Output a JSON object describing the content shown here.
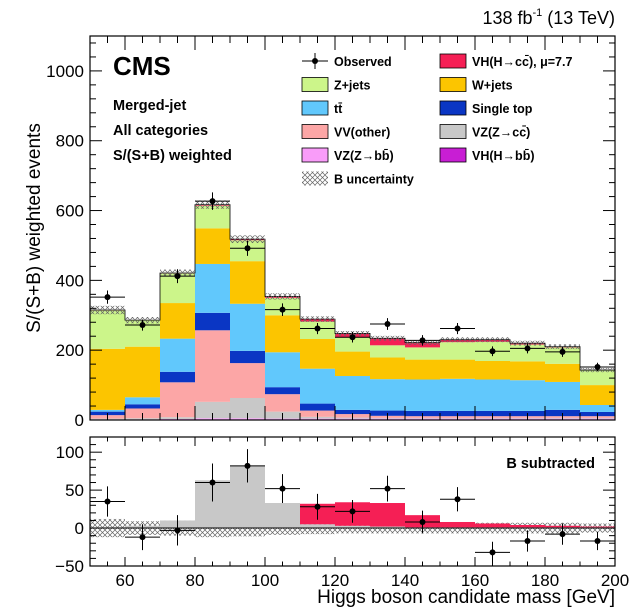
{
  "header": {
    "lumi_value": "138 fb",
    "lumi_exp": "-1",
    "lumi_energy": " (13 TeV)"
  },
  "labels": {
    "experiment": "CMS",
    "note1": "Merged-jet",
    "note2": "All categories",
    "note3": "S/(S+B) weighted",
    "lower_note": "B subtracted"
  },
  "colors": {
    "zjets": "#ccf58a",
    "wjets": "#fcc500",
    "ttbar": "#61c8fc",
    "singletop": "#0a36c4",
    "vvother": "#fca6a6",
    "vzcc": "#c8c8c8",
    "vzbb": "#f99cf9",
    "vhbb": "#c81ed4",
    "vhcc": "#f51f55"
  },
  "legend": [
    {
      "key": "observed",
      "label": "Observed",
      "kind": "marker"
    },
    {
      "key": "vhcc",
      "label": "VH(H→cc̄), μ=7.7",
      "kind": "box"
    },
    {
      "key": "zjets",
      "label": "Z+jets",
      "kind": "box"
    },
    {
      "key": "wjets",
      "label": "W+jets",
      "kind": "box"
    },
    {
      "key": "ttbar",
      "label": "tt̄",
      "kind": "box"
    },
    {
      "key": "singletop",
      "label": "Single top",
      "kind": "box"
    },
    {
      "key": "vvother",
      "label": "VV(other)",
      "kind": "box"
    },
    {
      "key": "vzcc",
      "label": "VZ(Z→cc̄)",
      "kind": "box"
    },
    {
      "key": "vzbb",
      "label": "VZ(Z→bb̄)",
      "kind": "box"
    },
    {
      "key": "vhbb",
      "label": "VH(H→bb̄)",
      "kind": "box"
    },
    {
      "key": "unc",
      "label": "B uncertainty",
      "kind": "hatch"
    }
  ],
  "chart_data": [
    {
      "type": "bar",
      "subtype": "stacked-histogram",
      "xlabel": "Higgs boson candidate mass [GeV]",
      "ylabel": "S/(S+B) weighted events",
      "xlim": [
        50,
        200
      ],
      "ylim": [
        0,
        1100
      ],
      "xticks": [
        60,
        80,
        100,
        120,
        140,
        160,
        180,
        200
      ],
      "yticks": [
        0,
        200,
        400,
        600,
        800,
        1000
      ],
      "bin_edges": [
        50,
        60,
        70,
        80,
        90,
        100,
        110,
        120,
        130,
        140,
        150,
        160,
        170,
        180,
        190,
        200
      ],
      "series": [
        {
          "key": "vhbb",
          "name": "VH(H→bb̄)",
          "values": [
            1,
            1,
            1,
            2,
            2,
            2,
            2,
            2,
            2,
            2,
            2,
            2,
            2,
            2,
            2
          ]
        },
        {
          "key": "vzbb",
          "name": "VZ(Z→bb̄)",
          "values": [
            1,
            1,
            2,
            3,
            3,
            2,
            2,
            2,
            2,
            2,
            2,
            2,
            2,
            2,
            2
          ]
        },
        {
          "key": "vzcc",
          "name": "VZ(Z→cc̄)",
          "values": [
            2,
            3,
            5,
            47,
            58,
            20,
            5,
            3,
            2,
            2,
            2,
            2,
            2,
            2,
            2
          ]
        },
        {
          "key": "vvother",
          "name": "VV(other)",
          "values": [
            10,
            28,
            100,
            205,
            100,
            50,
            18,
            10,
            6,
            5,
            5,
            5,
            5,
            5,
            5
          ]
        },
        {
          "key": "singletop",
          "name": "Single top",
          "values": [
            10,
            12,
            30,
            50,
            35,
            20,
            20,
            12,
            15,
            15,
            15,
            15,
            15,
            18,
            12
          ]
        },
        {
          "key": "ttbar",
          "name": "tt̄",
          "values": [
            5,
            20,
            95,
            140,
            135,
            100,
            100,
            97,
            90,
            90,
            92,
            90,
            88,
            80,
            20
          ]
        },
        {
          "key": "wjets",
          "name": "W+jets",
          "values": [
            175,
            145,
            102,
            102,
            122,
            106,
            85,
            70,
            62,
            57,
            55,
            53,
            54,
            52,
            57
          ]
        },
        {
          "key": "zjets",
          "name": "Z+jets",
          "values": [
            110,
            75,
            85,
            65,
            60,
            50,
            50,
            40,
            35,
            35,
            50,
            55,
            48,
            47,
            42
          ]
        },
        {
          "key": "vhcc",
          "name": "VH(H→cc̄), μ=7.7",
          "values": [
            1,
            1,
            1,
            3,
            3,
            4,
            7,
            12,
            20,
            14,
            7,
            6,
            4,
            2,
            1
          ]
        }
      ],
      "uncertainty_halfwidth": [
        12,
        9,
        10,
        12,
        11,
        9,
        8,
        7,
        7,
        7,
        7,
        7,
        7,
        7,
        6
      ],
      "observed": {
        "name": "Observed",
        "x": [
          55,
          65,
          75,
          85,
          95,
          105,
          115,
          125,
          135,
          145,
          155,
          165,
          175,
          185,
          195
        ],
        "y": [
          352,
          272,
          412,
          627,
          492,
          316,
          262,
          237,
          275,
          228,
          262,
          197,
          205,
          195,
          152
        ],
        "yerr": [
          19,
          16,
          20,
          25,
          22,
          18,
          16,
          15,
          17,
          15,
          16,
          14,
          14,
          14,
          12
        ]
      }
    },
    {
      "type": "bar",
      "subtype": "background-subtracted",
      "xlabel": "Higgs boson candidate mass [GeV]",
      "ylabel": "",
      "xlim": [
        50,
        200
      ],
      "ylim": [
        -50,
        120
      ],
      "xticks": [
        60,
        80,
        100,
        120,
        140,
        160,
        180,
        200
      ],
      "yticks": [
        -50,
        0,
        50,
        100
      ],
      "bin_edges": [
        50,
        60,
        70,
        80,
        90,
        100,
        110,
        120,
        130,
        140,
        150,
        160,
        170,
        180,
        190,
        200
      ],
      "series": [
        {
          "key": "vzcc",
          "name": "VZ(Z→cc̄)",
          "values": [
            1,
            3,
            10,
            63,
            82,
            33,
            5,
            3,
            2,
            1,
            1,
            1,
            1,
            1,
            1
          ]
        },
        {
          "key": "vhcc",
          "name": "VH(H→cc̄), μ=7.7",
          "values": [
            0,
            0,
            0,
            0,
            0,
            0,
            27,
            31,
            31,
            16,
            7,
            5,
            3,
            2,
            1
          ]
        }
      ],
      "uncertainty_halfwidth": [
        12,
        9,
        10,
        12,
        11,
        9,
        8,
        7,
        7,
        7,
        7,
        7,
        7,
        7,
        6
      ],
      "observed": {
        "name": "Observed",
        "x": [
          55,
          65,
          75,
          85,
          95,
          105,
          115,
          125,
          135,
          145,
          155,
          165,
          175,
          185,
          195
        ],
        "y": [
          35,
          -12,
          -3,
          60,
          82,
          52,
          28,
          22,
          52,
          8,
          38,
          -32,
          -17,
          -8,
          -17
        ],
        "yerr": [
          20,
          17,
          20,
          25,
          22,
          19,
          17,
          15,
          17,
          15,
          16,
          14,
          14,
          14,
          12
        ]
      }
    }
  ]
}
